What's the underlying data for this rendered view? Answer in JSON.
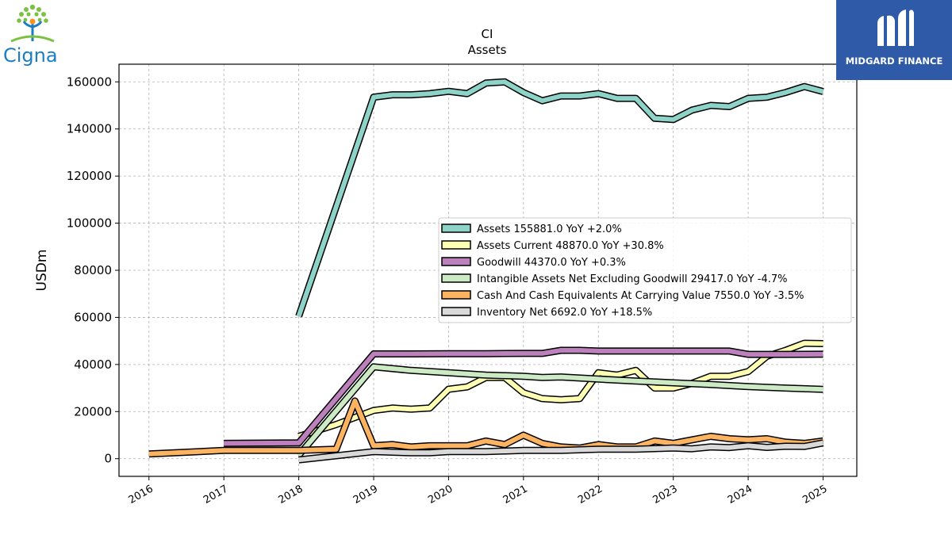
{
  "logos": {
    "left_text": "Cigna",
    "right_text": "MIDGARD FINANCE"
  },
  "chart_data": {
    "type": "line",
    "title": "CI",
    "subtitle": "Assets",
    "ylabel": "USDm",
    "xlabel": "",
    "ylim": [
      -7500,
      167500
    ],
    "xlim": [
      2015.6,
      2025.45
    ],
    "yticks": [
      0,
      20000,
      40000,
      60000,
      80000,
      100000,
      120000,
      140000,
      160000
    ],
    "xticks": [
      "2016",
      "2017",
      "2018",
      "2019",
      "2020",
      "2021",
      "2022",
      "2023",
      "2024",
      "2025"
    ],
    "grid": true,
    "legend_position": "center-right",
    "series": [
      {
        "name": "Assets",
        "legend": "Assets  155881.0 YoY +2.0%",
        "color": "#8dd3c7",
        "points": [
          [
            2018.0,
            60500
          ],
          [
            2019.0,
            153500
          ],
          [
            2019.25,
            154500
          ],
          [
            2019.5,
            154500
          ],
          [
            2019.75,
            155000
          ],
          [
            2020.0,
            156000
          ],
          [
            2020.25,
            155000
          ],
          [
            2020.5,
            159500
          ],
          [
            2020.75,
            160000
          ],
          [
            2021.0,
            155500
          ],
          [
            2021.25,
            152000
          ],
          [
            2021.5,
            154000
          ],
          [
            2021.75,
            154000
          ],
          [
            2022.0,
            155000
          ],
          [
            2022.25,
            153000
          ],
          [
            2022.5,
            153000
          ],
          [
            2022.75,
            144500
          ],
          [
            2023.0,
            144000
          ],
          [
            2023.25,
            148000
          ],
          [
            2023.5,
            150000
          ],
          [
            2023.75,
            149500
          ],
          [
            2024.0,
            153000
          ],
          [
            2024.25,
            153500
          ],
          [
            2024.5,
            155500
          ],
          [
            2024.75,
            158000
          ],
          [
            2025.0,
            155881
          ]
        ]
      },
      {
        "name": "Assets Current",
        "legend": "Assets Current  48870.0 YoY +30.8%",
        "color": "#ffffb3",
        "points": [
          [
            2018.0,
            9500
          ],
          [
            2018.5,
            14500
          ],
          [
            2018.75,
            17500
          ],
          [
            2019.0,
            20500
          ],
          [
            2019.25,
            21500
          ],
          [
            2019.5,
            21000
          ],
          [
            2019.75,
            21500
          ],
          [
            2020.0,
            29500
          ],
          [
            2020.25,
            30500
          ],
          [
            2020.5,
            34500
          ],
          [
            2020.75,
            34500
          ],
          [
            2021.0,
            28000
          ],
          [
            2021.25,
            25500
          ],
          [
            2021.5,
            25000
          ],
          [
            2021.75,
            25500
          ],
          [
            2022.0,
            36500
          ],
          [
            2022.25,
            35500
          ],
          [
            2022.5,
            37500
          ],
          [
            2022.75,
            30000
          ],
          [
            2023.0,
            30000
          ],
          [
            2023.25,
            32000
          ],
          [
            2023.5,
            35000
          ],
          [
            2023.75,
            35000
          ],
          [
            2024.0,
            37000
          ],
          [
            2024.25,
            43500
          ],
          [
            2024.5,
            46000
          ],
          [
            2024.75,
            49000
          ],
          [
            2025.0,
            48870
          ]
        ]
      },
      {
        "name": "Goodwill",
        "legend": "Goodwill  44370.0 YoY +0.3%",
        "color": "#bc80bd",
        "points": [
          [
            2017.0,
            6500
          ],
          [
            2018.0,
            6700
          ],
          [
            2019.0,
            44500
          ],
          [
            2019.5,
            44500
          ],
          [
            2020.0,
            44600
          ],
          [
            2020.5,
            44600
          ],
          [
            2021.0,
            44700
          ],
          [
            2021.25,
            44700
          ],
          [
            2021.5,
            46000
          ],
          [
            2021.75,
            46000
          ],
          [
            2022.0,
            45700
          ],
          [
            2022.5,
            45700
          ],
          [
            2023.0,
            45700
          ],
          [
            2023.5,
            45700
          ],
          [
            2023.75,
            45700
          ],
          [
            2024.0,
            44300
          ],
          [
            2024.5,
            44300
          ],
          [
            2025.0,
            44370
          ]
        ]
      },
      {
        "name": "Intangible Assets Net Excluding Goodwill",
        "legend": "Intangible Assets Net Excluding Goodwill  29417.0 YoY -4.7%",
        "color": "#ccebc5",
        "points": [
          [
            2018.0,
            1500
          ],
          [
            2019.0,
            39000
          ],
          [
            2019.5,
            37500
          ],
          [
            2020.0,
            36500
          ],
          [
            2020.5,
            35500
          ],
          [
            2021.0,
            35000
          ],
          [
            2021.25,
            34500
          ],
          [
            2021.5,
            34700
          ],
          [
            2022.0,
            33800
          ],
          [
            2022.5,
            33000
          ],
          [
            2023.0,
            32200
          ],
          [
            2023.5,
            31500
          ],
          [
            2024.0,
            30600
          ],
          [
            2024.5,
            30000
          ],
          [
            2025.0,
            29417
          ]
        ]
      },
      {
        "name": "Cash And Cash Equivalents At Carrying Value",
        "legend": "Cash And Cash Equivalents At Carrying Value  7550.0 YoY -3.5%",
        "color": "#fdb462",
        "points": [
          [
            2016.0,
            2000
          ],
          [
            2017.0,
            3500
          ],
          [
            2018.0,
            3500
          ],
          [
            2018.5,
            4000
          ],
          [
            2018.75,
            24500
          ],
          [
            2019.0,
            5500
          ],
          [
            2019.25,
            6000
          ],
          [
            2019.5,
            5000
          ],
          [
            2019.75,
            5500
          ],
          [
            2020.0,
            5500
          ],
          [
            2020.25,
            5500
          ],
          [
            2020.5,
            7500
          ],
          [
            2020.75,
            6000
          ],
          [
            2021.0,
            10000
          ],
          [
            2021.25,
            6500
          ],
          [
            2021.5,
            5000
          ],
          [
            2021.75,
            4500
          ],
          [
            2022.0,
            6000
          ],
          [
            2022.25,
            5000
          ],
          [
            2022.5,
            5000
          ],
          [
            2022.75,
            7500
          ],
          [
            2023.0,
            6500
          ],
          [
            2023.25,
            8000
          ],
          [
            2023.5,
            9500
          ],
          [
            2023.75,
            8500
          ],
          [
            2024.0,
            8000
          ],
          [
            2024.25,
            8500
          ],
          [
            2024.5,
            7000
          ],
          [
            2024.75,
            6500
          ],
          [
            2025.0,
            7550
          ]
        ]
      },
      {
        "name": "Inventory Net",
        "legend": "Inventory Net  6692.0 YoY +18.5%",
        "color": "#d9d9d9",
        "points": [
          [
            2018.0,
            -500
          ],
          [
            2019.0,
            3000
          ],
          [
            2019.5,
            2500
          ],
          [
            2019.75,
            2500
          ],
          [
            2020.0,
            3000
          ],
          [
            2020.5,
            3000
          ],
          [
            2021.0,
            3500
          ],
          [
            2021.5,
            3500
          ],
          [
            2022.0,
            4000
          ],
          [
            2022.5,
            4000
          ],
          [
            2023.0,
            4500
          ],
          [
            2023.25,
            4200
          ],
          [
            2023.5,
            5000
          ],
          [
            2023.75,
            4700
          ],
          [
            2024.0,
            5500
          ],
          [
            2024.25,
            4800
          ],
          [
            2024.5,
            5300
          ],
          [
            2024.75,
            5200
          ],
          [
            2025.0,
            6692
          ]
        ]
      }
    ]
  }
}
